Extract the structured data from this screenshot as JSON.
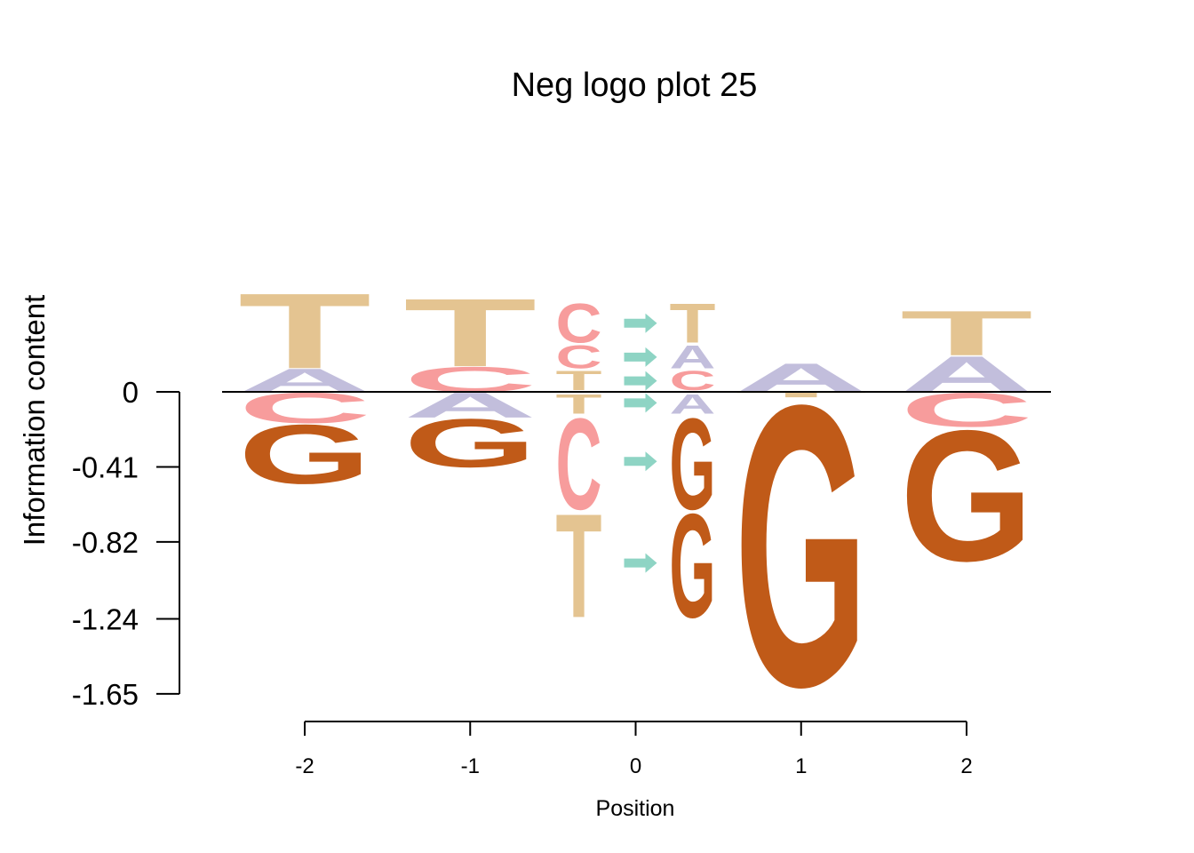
{
  "chart_data": {
    "type": "sequence-logo",
    "title": "Neg logo plot 25",
    "xlabel": "Position",
    "ylabel": "Information content",
    "ylim": [
      -1.65,
      0.7
    ],
    "yticks": [
      0,
      -0.41,
      -0.82,
      -1.24,
      -1.65
    ],
    "ytick_labels": [
      "0",
      "-0.41",
      "-0.82",
      "-1.24",
      "-1.65"
    ],
    "xticks": [
      -2,
      -1,
      0,
      1,
      2
    ],
    "xtick_labels": [
      "-2",
      "-1",
      "0",
      "1",
      "2"
    ],
    "colors": {
      "A": "#c2bedc",
      "C": "#f79c9c",
      "G": "#c05a18",
      "T": "#e4c491",
      "arrow": "#8ed4c4"
    },
    "columns": [
      {
        "position": -2,
        "type": "stack",
        "positive": [
          {
            "letter": "A",
            "value": 0.13
          },
          {
            "letter": "T",
            "value": 0.42
          }
        ],
        "negative": [
          {
            "letter": "C",
            "value": 0.17
          },
          {
            "letter": "G",
            "value": 0.33
          }
        ]
      },
      {
        "position": -1,
        "type": "stack",
        "positive": [
          {
            "letter": "C",
            "value": 0.14
          },
          {
            "letter": "T",
            "value": 0.38
          }
        ],
        "negative": [
          {
            "letter": "A",
            "value": 0.14
          },
          {
            "letter": "G",
            "value": 0.27
          }
        ]
      },
      {
        "position": 0,
        "type": "pair",
        "pairs": [
          {
            "left": "C",
            "right": "T",
            "value": 0.23,
            "side": "positive"
          },
          {
            "left": "C",
            "right": "A",
            "value": 0.14,
            "side": "positive"
          },
          {
            "left": "T",
            "right": "C",
            "value": 0.12,
            "side": "positive"
          },
          {
            "left": "T",
            "right": "A",
            "value": 0.12,
            "side": "negative"
          },
          {
            "left": "C",
            "right": "G",
            "value": 0.52,
            "side": "negative"
          },
          {
            "left": "T",
            "right": "G",
            "value": 0.59,
            "side": "negative"
          }
        ]
      },
      {
        "position": 1,
        "type": "stack",
        "positive": [
          {
            "letter": "A",
            "value": 0.16
          }
        ],
        "negative": [
          {
            "letter": "T",
            "value": 0.03
          },
          {
            "letter": "G",
            "value": 1.57
          }
        ]
      },
      {
        "position": 2,
        "type": "stack",
        "positive": [
          {
            "letter": "A",
            "value": 0.2
          },
          {
            "letter": "T",
            "value": 0.25
          }
        ],
        "negative": [
          {
            "letter": "C",
            "value": 0.19
          },
          {
            "letter": "G",
            "value": 0.73
          }
        ]
      }
    ]
  }
}
